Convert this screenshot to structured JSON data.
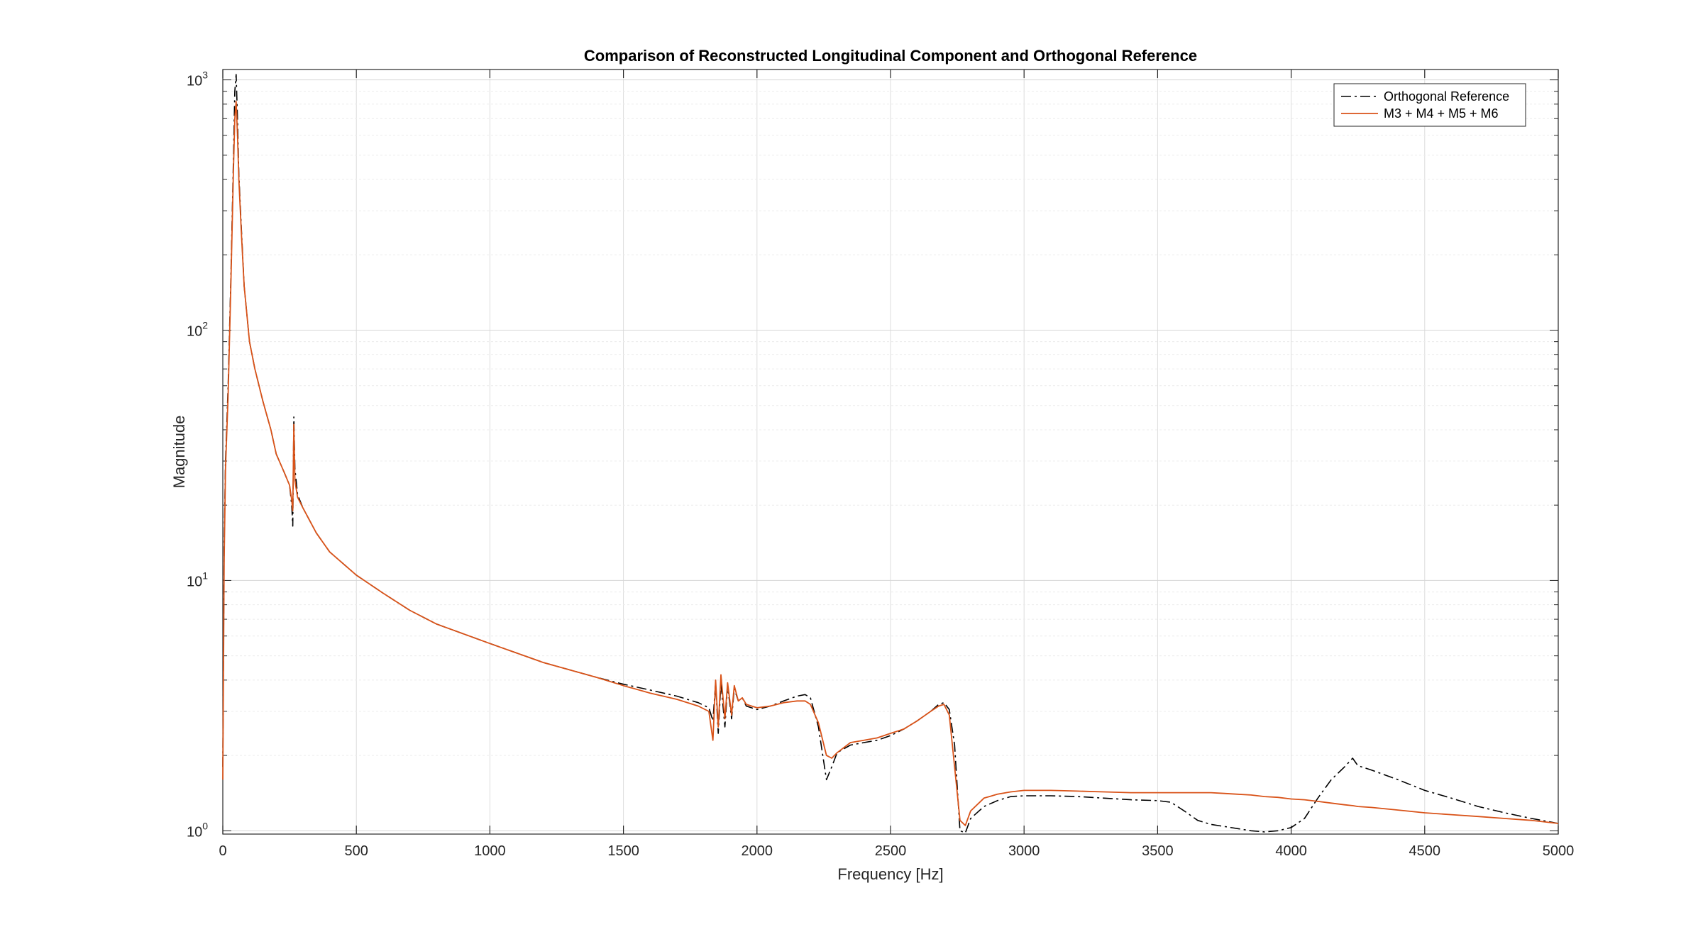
{
  "chart_data": {
    "type": "line",
    "title": "Comparison of Reconstructed Longitudinal Component and Orthogonal Reference",
    "xlabel": "Frequency [Hz]",
    "ylabel": "Magnitude",
    "xlim": [
      0,
      5000
    ],
    "ylim": [
      0.97,
      1100
    ],
    "yscale": "log",
    "grid": true,
    "legend_position": "top-right",
    "xticks": [
      0,
      500,
      1000,
      1500,
      2000,
      2500,
      3000,
      3500,
      4000,
      4500,
      5000
    ],
    "xtick_labels": [
      "0",
      "500",
      "1000",
      "1500",
      "2000",
      "2500",
      "3000",
      "3500",
      "4000",
      "4500",
      "5000"
    ],
    "yticks": [
      1,
      10,
      100,
      1000
    ],
    "ytick_labels": [
      {
        "base": "10",
        "exp": "0"
      },
      {
        "base": "10",
        "exp": "1"
      },
      {
        "base": "10",
        "exp": "2"
      },
      {
        "base": "10",
        "exp": "3"
      }
    ],
    "series": [
      {
        "name": "Orthogonal Reference",
        "color": "#000000",
        "style": "dash-dot",
        "x": [
          0,
          5,
          10,
          20,
          30,
          40,
          45,
          50,
          55,
          60,
          70,
          80,
          100,
          120,
          150,
          180,
          200,
          230,
          250,
          258,
          262,
          266,
          270,
          280,
          300,
          350,
          400,
          500,
          600,
          700,
          800,
          1000,
          1200,
          1400,
          1500,
          1600,
          1700,
          1780,
          1820,
          1835,
          1845,
          1855,
          1865,
          1880,
          1890,
          1905,
          1915,
          1930,
          1945,
          1960,
          2000,
          2050,
          2100,
          2150,
          2180,
          2200,
          2230,
          2260,
          2280,
          2300,
          2350,
          2400,
          2450,
          2500,
          2550,
          2600,
          2650,
          2680,
          2700,
          2720,
          2740,
          2760,
          2780,
          2800,
          2850,
          2900,
          2950,
          3000,
          3100,
          3200,
          3300,
          3400,
          3500,
          3550,
          3600,
          3650,
          3700,
          3750,
          3800,
          3850,
          3900,
          3950,
          4000,
          4050,
          4100,
          4150,
          4200,
          4230,
          4250,
          4300,
          4400,
          4500,
          4600,
          4700,
          4800,
          4900,
          5000
        ],
        "y": [
          1.8,
          14,
          30,
          60,
          160,
          500,
          900,
          1050,
          700,
          420,
          250,
          150,
          90,
          70,
          52,
          40,
          32,
          27,
          24,
          20,
          16.5,
          45,
          28,
          22,
          19.5,
          15.5,
          13,
          10.5,
          8.9,
          7.6,
          6.7,
          5.6,
          4.7,
          4.1,
          3.85,
          3.65,
          3.45,
          3.25,
          3.1,
          2.75,
          3.9,
          2.45,
          3.9,
          2.6,
          3.8,
          2.8,
          3.7,
          3.3,
          3.4,
          3.15,
          3.05,
          3.15,
          3.3,
          3.45,
          3.5,
          3.4,
          2.6,
          1.6,
          1.8,
          2.05,
          2.2,
          2.25,
          2.3,
          2.4,
          2.55,
          2.75,
          3.0,
          3.2,
          3.25,
          3.05,
          2.2,
          1.0,
          0.98,
          1.12,
          1.25,
          1.32,
          1.37,
          1.38,
          1.38,
          1.37,
          1.35,
          1.33,
          1.32,
          1.3,
          1.2,
          1.1,
          1.06,
          1.04,
          1.02,
          1.0,
          0.99,
          1.0,
          1.03,
          1.12,
          1.35,
          1.6,
          1.8,
          1.95,
          1.82,
          1.75,
          1.6,
          1.45,
          1.35,
          1.25,
          1.18,
          1.12,
          1.07
        ]
      },
      {
        "name": "M3 + M4 + M5 + M6",
        "color": "#D95319",
        "style": "solid",
        "x": [
          0,
          5,
          10,
          20,
          30,
          40,
          45,
          50,
          55,
          60,
          70,
          80,
          100,
          120,
          150,
          180,
          200,
          230,
          250,
          258,
          262,
          266,
          270,
          280,
          300,
          350,
          400,
          500,
          600,
          700,
          800,
          1000,
          1200,
          1400,
          1500,
          1600,
          1700,
          1780,
          1820,
          1835,
          1845,
          1855,
          1865,
          1880,
          1890,
          1905,
          1915,
          1930,
          1945,
          1960,
          2000,
          2050,
          2100,
          2150,
          2180,
          2200,
          2230,
          2260,
          2280,
          2300,
          2350,
          2400,
          2450,
          2500,
          2550,
          2600,
          2650,
          2680,
          2700,
          2720,
          2740,
          2760,
          2780,
          2800,
          2850,
          2900,
          2950,
          3000,
          3100,
          3200,
          3300,
          3400,
          3500,
          3550,
          3600,
          3650,
          3700,
          3750,
          3800,
          3850,
          3900,
          3950,
          4000,
          4050,
          4100,
          4150,
          4200,
          4230,
          4250,
          4300,
          4400,
          4500,
          4600,
          4700,
          4800,
          4900,
          5000
        ],
        "y": [
          1.6,
          12,
          28,
          55,
          150,
          450,
          700,
          820,
          600,
          400,
          240,
          150,
          90,
          70,
          52,
          40,
          32,
          27,
          24,
          21,
          19,
          42,
          25,
          21.5,
          19.5,
          15.5,
          13,
          10.5,
          8.9,
          7.6,
          6.7,
          5.6,
          4.7,
          4.1,
          3.8,
          3.55,
          3.35,
          3.15,
          3.0,
          2.3,
          4.0,
          2.6,
          4.2,
          2.8,
          3.9,
          2.9,
          3.8,
          3.3,
          3.4,
          3.2,
          3.1,
          3.15,
          3.25,
          3.3,
          3.3,
          3.2,
          2.7,
          2.0,
          1.95,
          2.05,
          2.25,
          2.3,
          2.35,
          2.45,
          2.55,
          2.75,
          3.0,
          3.15,
          3.2,
          2.9,
          1.8,
          1.1,
          1.05,
          1.2,
          1.35,
          1.4,
          1.43,
          1.45,
          1.45,
          1.44,
          1.43,
          1.42,
          1.42,
          1.42,
          1.42,
          1.42,
          1.42,
          1.41,
          1.4,
          1.39,
          1.37,
          1.36,
          1.34,
          1.33,
          1.31,
          1.29,
          1.27,
          1.26,
          1.25,
          1.24,
          1.21,
          1.18,
          1.16,
          1.14,
          1.12,
          1.1,
          1.07
        ]
      }
    ]
  }
}
